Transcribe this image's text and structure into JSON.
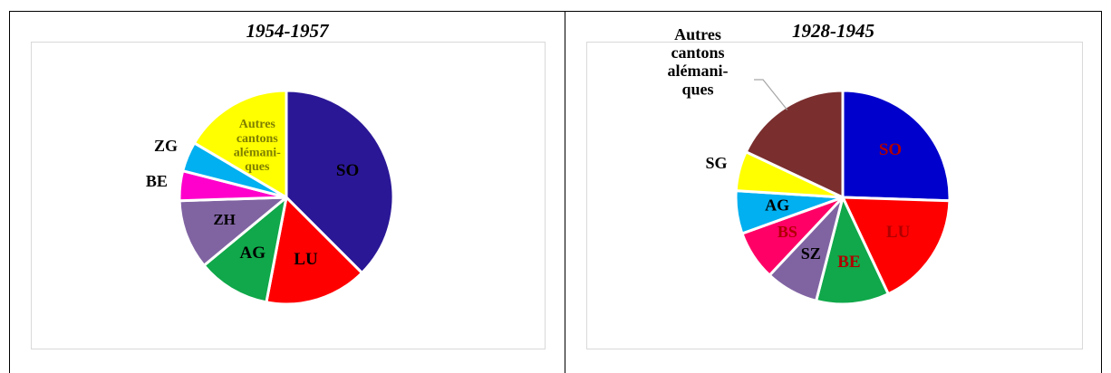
{
  "chart_data": [
    {
      "type": "pie",
      "title": "1954-1957",
      "slices": [
        {
          "label": "SO",
          "value": 37.5,
          "color": "#2a1796"
        },
        {
          "label": "LU",
          "value": 15.5,
          "color": "#ff0000"
        },
        {
          "label": "AG",
          "value": 11.0,
          "color": "#10a84a"
        },
        {
          "label": "ZH",
          "value": 10.5,
          "color": "#8064a2"
        },
        {
          "label": "BE",
          "value": 4.5,
          "color": "#ff00cc"
        },
        {
          "label": "ZG",
          "value": 4.5,
          "color": "#00b0f0"
        },
        {
          "label": "Autres cantons alémani-ques",
          "value": 16.5,
          "color": "#ffff00"
        }
      ]
    },
    {
      "type": "pie",
      "title": "1928-1945",
      "slices": [
        {
          "label": "SO",
          "value": 25.5,
          "color": "#0000cc"
        },
        {
          "label": "LU",
          "value": 17.5,
          "color": "#ff0000"
        },
        {
          "label": "BE",
          "value": 11.0,
          "color": "#10a84a"
        },
        {
          "label": "SZ",
          "value": 8.0,
          "color": "#8064a2"
        },
        {
          "label": "BS",
          "value": 7.5,
          "color": "#ff0066"
        },
        {
          "label": "AG",
          "value": 6.5,
          "color": "#00b0f0"
        },
        {
          "label": "SG",
          "value": 6.0,
          "color": "#ffff00"
        },
        {
          "label": "Autres cantons alémani-ques",
          "value": 18.0,
          "color": "#7a2e2e"
        }
      ]
    }
  ]
}
